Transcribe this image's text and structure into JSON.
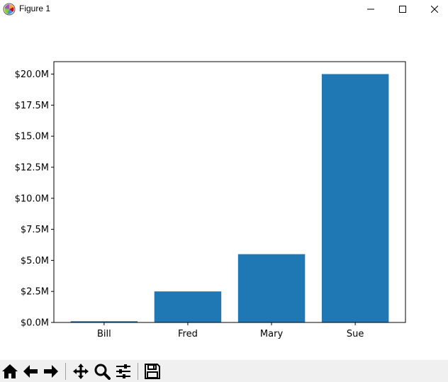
{
  "window": {
    "title": "Figure 1",
    "controls": {
      "minimize_icon": "minimize-icon",
      "maximize_icon": "maximize-icon",
      "close_icon": "close-icon"
    }
  },
  "toolbar": {
    "buttons": [
      {
        "name": "home-button",
        "icon": "home-icon"
      },
      {
        "name": "back-button",
        "icon": "back-arrow-icon"
      },
      {
        "name": "forward-button",
        "icon": "forward-arrow-icon"
      },
      {
        "name": "pan-button",
        "icon": "pan-arrows-icon"
      },
      {
        "name": "zoom-button",
        "icon": "zoom-magnifier-icon"
      },
      {
        "name": "configure-subplots-button",
        "icon": "sliders-icon"
      },
      {
        "name": "save-button",
        "icon": "floppy-disk-icon"
      }
    ]
  },
  "chart_data": {
    "type": "bar",
    "categories": [
      "Bill",
      "Fred",
      "Mary",
      "Sue"
    ],
    "values": [
      100000,
      2500000,
      5500000,
      20000000
    ],
    "ylim": [
      0,
      21000000
    ],
    "yticks": [
      0,
      2500000,
      5000000,
      7500000,
      10000000,
      12500000,
      15000000,
      17500000,
      20000000
    ],
    "ytick_labels": [
      "$0.0M",
      "$2.5M",
      "$5.0M",
      "$7.5M",
      "$10.0M",
      "$12.5M",
      "$15.0M",
      "$17.5M",
      "$20.0M"
    ],
    "title": "",
    "xlabel": "",
    "ylabel": "",
    "bar_color": "#1f77b4",
    "grid": false
  }
}
